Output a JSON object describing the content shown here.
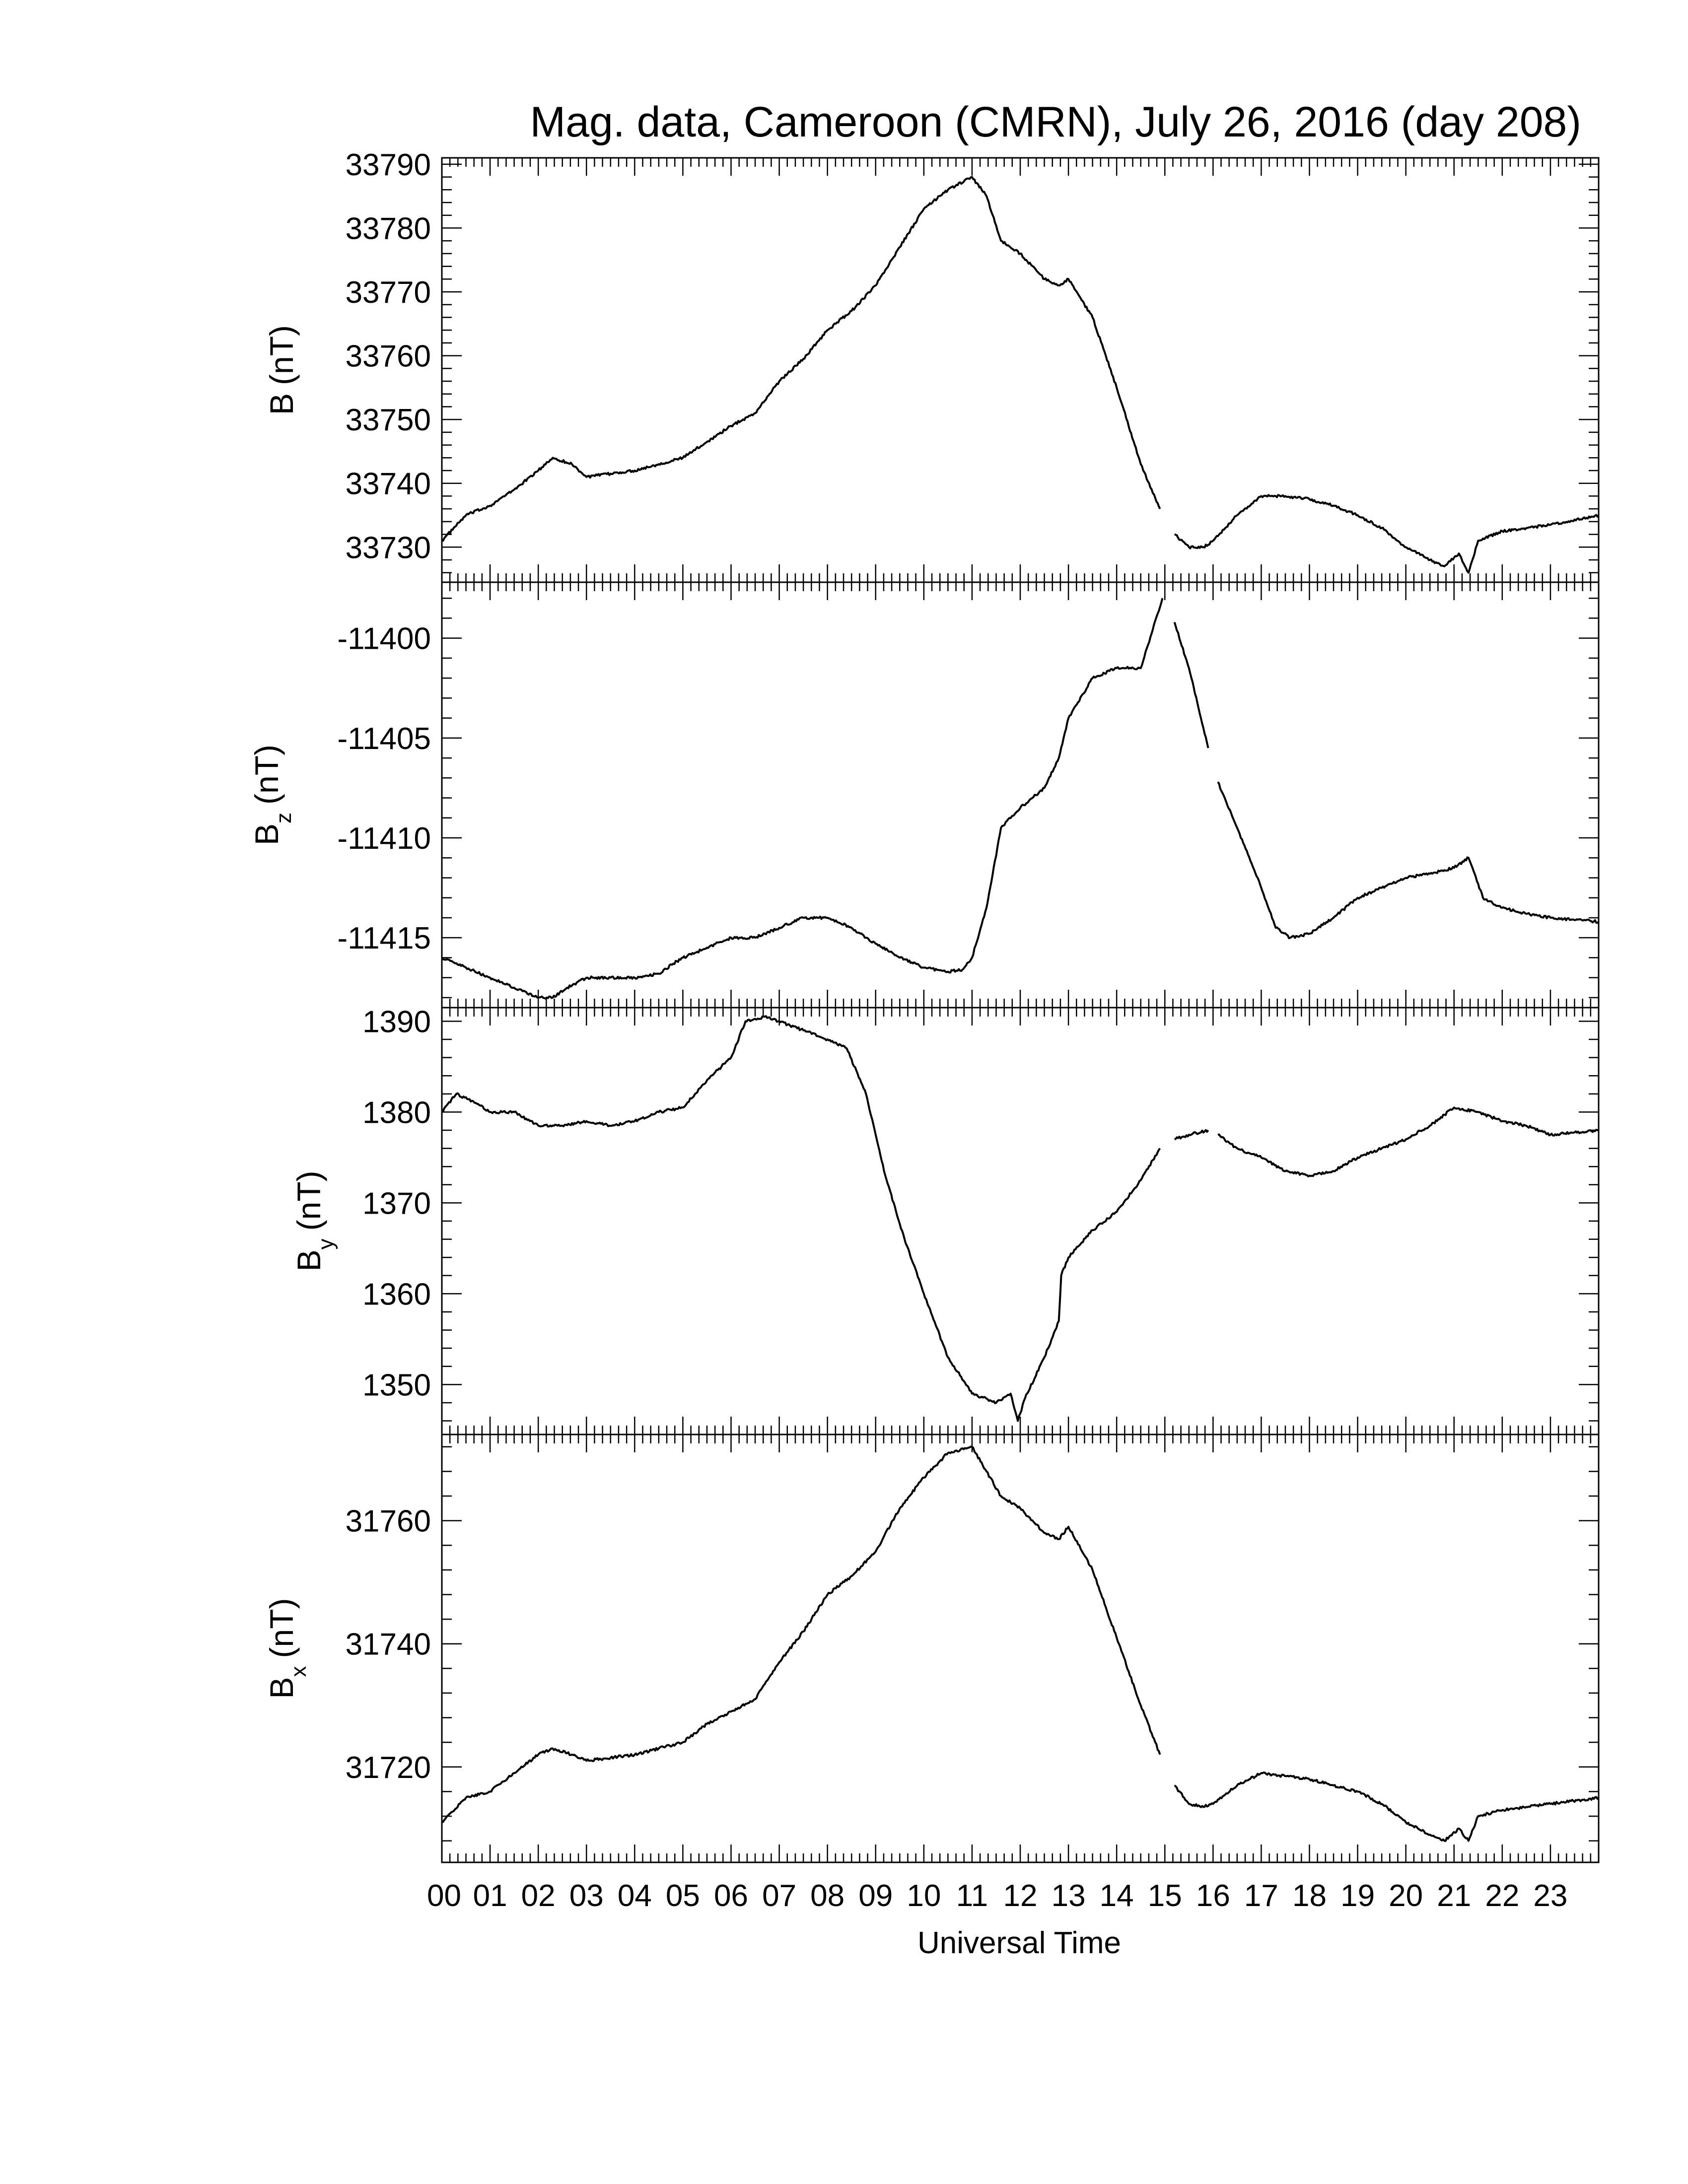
{
  "title": "Mag. data, Cameroon (CMRN), July 26, 2016 (day 208)",
  "xlabel": "Universal Time",
  "colors": {
    "line": "#000000",
    "axis": "#000000",
    "background": "#ffffff"
  },
  "chart_data": [
    {
      "type": "line",
      "component": "B",
      "ylabel_main": "B",
      "ylabel_sub": "",
      "ylabel_unit": "(nT)",
      "ylim": [
        33724.5,
        33791
      ],
      "yticks": [
        33730,
        33740,
        33750,
        33760,
        33770,
        33780,
        33790
      ],
      "x": [
        0,
        0.5,
        1,
        1.5,
        2,
        2.3,
        2.7,
        3,
        3.5,
        4,
        4.5,
        5,
        5.5,
        6,
        6.5,
        7,
        7.5,
        8,
        8.5,
        9,
        9.5,
        10,
        10.5,
        11,
        11.3,
        11.6,
        12,
        12.5,
        12.8,
        13,
        13.5,
        14,
        14.5,
        14.9,
        null,
        15.2,
        15.5,
        15.8,
        16,
        16.5,
        17,
        17.5,
        18,
        18.5,
        19,
        19.5,
        20,
        20.5,
        20.8,
        21.1,
        21.3,
        21.5,
        22,
        22.5,
        23,
        24
      ],
      "y": [
        33731,
        33735,
        33736.5,
        33739,
        33742,
        33744,
        33743,
        33741,
        33741.5,
        33742,
        33743,
        33744,
        33746.5,
        33749,
        33751,
        33756,
        33759.5,
        33764,
        33767,
        33771,
        33777,
        33783,
        33786,
        33788,
        33785,
        33778,
        33776,
        33772,
        33771,
        33772,
        33766,
        33755,
        33743,
        33736,
        null,
        33732,
        33730,
        33730,
        33731,
        33735,
        33738,
        33738,
        33737.5,
        33736.5,
        33735,
        33733,
        33730,
        33728,
        33727,
        33729,
        33726,
        33731,
        33732.5,
        33733,
        33733.5,
        33735
      ]
    },
    {
      "type": "line",
      "component": "Bz",
      "ylabel_main": "B",
      "ylabel_sub": "z",
      "ylabel_unit": "(nT)",
      "ylim": [
        -11418.5,
        -11397.2
      ],
      "yticks": [
        -11400,
        -11405,
        -11410,
        -11415
      ],
      "x": [
        0,
        0.5,
        1,
        1.5,
        2,
        2.3,
        2.6,
        3,
        3.5,
        4,
        4.5,
        4.8,
        5,
        5.5,
        6,
        6.5,
        7,
        7.5,
        8,
        8.5,
        9,
        9.5,
        10,
        10.5,
        10.8,
        11,
        11.3,
        11.6,
        12,
        12.5,
        12.8,
        13,
        13.5,
        14,
        14.5,
        14.95,
        null,
        15.2,
        15.5,
        15.9,
        null,
        16.1,
        16.5,
        17,
        17.3,
        17.6,
        18,
        18.5,
        19,
        19.5,
        20,
        20.5,
        21,
        21.3,
        21.6,
        22,
        22.5,
        23,
        24
      ],
      "y": [
        -11416,
        -11416.5,
        -11417,
        -11417.5,
        -11418,
        -11418,
        -11417.5,
        -11417,
        -11417,
        -11417,
        -11416.8,
        -11416.3,
        -11416,
        -11415.5,
        -11415,
        -11415,
        -11414.5,
        -11414,
        -11414,
        -11414.5,
        -11415.3,
        -11416,
        -11416.5,
        -11416.7,
        -11416.6,
        -11416,
        -11413.5,
        -11409.5,
        -11408.5,
        -11407.5,
        -11406,
        -11404,
        -11402,
        -11401.5,
        -11401.5,
        -11398,
        null,
        -11399.2,
        -11401.5,
        -11405.5,
        null,
        -11407.2,
        -11409.5,
        -11412.5,
        -11414.5,
        -11415,
        -11414.8,
        -11414,
        -11413,
        -11412.5,
        -11412,
        -11411.8,
        -11411.5,
        -11411,
        -11413,
        -11413.5,
        -11413.8,
        -11414,
        -11414.2
      ]
    },
    {
      "type": "line",
      "component": "By",
      "ylabel_main": "B",
      "ylabel_sub": "y",
      "ylabel_unit": "(nT)",
      "ylim": [
        1344.5,
        1391.5
      ],
      "yticks": [
        1350,
        1360,
        1370,
        1380,
        1390
      ],
      "x": [
        0,
        0.3,
        0.7,
        1,
        1.5,
        2,
        2.5,
        3,
        3.5,
        4,
        4.5,
        5,
        5.5,
        6,
        6.3,
        6.7,
        7,
        7.5,
        8,
        8.4,
        8.8,
        9.2,
        9.6,
        10,
        10.5,
        11,
        11.5,
        11.8,
        11.95,
        12.1,
        12.5,
        12.8,
        12.85,
        13,
        13.5,
        14,
        14.5,
        14.9,
        null,
        15.2,
        15.5,
        15.9,
        null,
        16.1,
        16.5,
        17,
        17.5,
        18,
        18.5,
        19,
        19.5,
        20,
        20.5,
        21,
        21.5,
        22,
        22.5,
        23,
        24
      ],
      "y": [
        1380,
        1382,
        1381,
        1380,
        1380,
        1378.5,
        1378.5,
        1379,
        1378.5,
        1379,
        1380,
        1380.5,
        1383.5,
        1386,
        1390,
        1390.5,
        1390,
        1389,
        1388,
        1387,
        1382,
        1373,
        1366,
        1360,
        1353,
        1349,
        1348,
        1349,
        1346,
        1348.5,
        1353,
        1357,
        1362,
        1364,
        1367,
        1369,
        1372.5,
        1376,
        null,
        1377,
        1377.5,
        1378,
        null,
        1377.5,
        1376,
        1375,
        1373.5,
        1373,
        1373.5,
        1375,
        1376,
        1377,
        1378.5,
        1380.5,
        1380,
        1379,
        1378.5,
        1377.5,
        1378
      ]
    },
    {
      "type": "line",
      "component": "Bx",
      "ylabel_main": "B",
      "ylabel_sub": "x",
      "ylabel_unit": "(nT)",
      "ylim": [
        31704.5,
        31774
      ],
      "yticks": [
        31720,
        31740,
        31760
      ],
      "x": [
        0,
        0.5,
        1,
        1.5,
        2,
        2.3,
        2.7,
        3,
        3.5,
        4,
        4.5,
        5,
        5.5,
        6,
        6.5,
        7,
        7.5,
        8,
        8.5,
        9,
        9.5,
        10,
        10.5,
        11,
        11.3,
        11.6,
        12,
        12.5,
        12.8,
        13,
        13.5,
        14,
        14.5,
        14.9,
        null,
        15.2,
        15.5,
        15.8,
        16,
        16.5,
        17,
        17.5,
        18,
        18.5,
        19,
        19.5,
        20,
        20.5,
        20.8,
        21.1,
        21.3,
        21.5,
        22,
        22.5,
        23,
        24
      ],
      "y": [
        31711,
        31715,
        31716,
        31719,
        31722,
        31723,
        31722,
        31721,
        31721.5,
        31722,
        31723,
        31724,
        31727,
        31729,
        31731,
        31737,
        31742,
        31748,
        31751,
        31755,
        31762,
        31767,
        31771,
        31772,
        31768,
        31764,
        31762,
        31758,
        31757,
        31759,
        31752,
        31741,
        31730,
        31722,
        null,
        31717,
        31714,
        31713.5,
        31714,
        31717,
        31719,
        31718.5,
        31718,
        31717,
        31716,
        31714,
        31711,
        31709,
        31708,
        31710,
        31708,
        31712,
        31713,
        31713.5,
        31714,
        31715
      ]
    }
  ],
  "x_axis": {
    "min": 0,
    "max": 24,
    "tick_labels": [
      "00",
      "01",
      "02",
      "03",
      "04",
      "05",
      "06",
      "07",
      "08",
      "09",
      "10",
      "11",
      "12",
      "13",
      "14",
      "15",
      "16",
      "17",
      "18",
      "19",
      "20",
      "21",
      "22",
      "23"
    ]
  }
}
